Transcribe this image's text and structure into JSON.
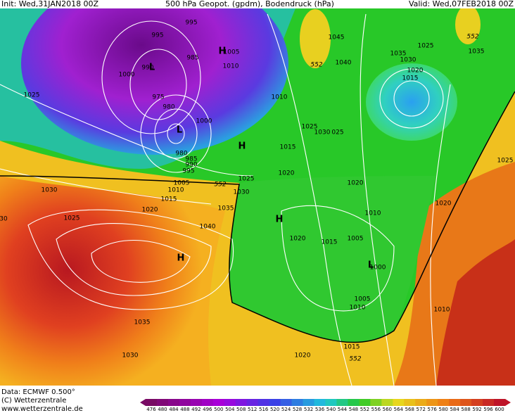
{
  "header": {
    "init": "Init: Wed,31JAN2018 00Z",
    "title": "500 hPa Geopot. (gpdm), Bodendruck (hPa)",
    "valid": "Valid: Wed,07FEB2018 00Z"
  },
  "isobar_labels": [
    "995",
    "995",
    "985",
    "1005",
    "1010",
    "1000",
    "990",
    "975",
    "980",
    "1000",
    "980",
    "985",
    "990",
    "995",
    "1005",
    "1010",
    "1015",
    "1020",
    "1025",
    "1030",
    "1025",
    "1035",
    "1040",
    "1025",
    "1030",
    "1020",
    "1010",
    "1015",
    "1025",
    "1030",
    "025",
    "1045",
    "1040",
    "1035",
    "1030",
    "1025",
    "1020",
    "1015",
    "1035",
    "1020",
    "1010",
    "1020",
    "1015",
    "1005",
    "1000",
    "1005",
    "1010",
    "1015",
    "1020",
    "1010",
    "1020",
    "1025",
    "1035",
    "1030",
    "30"
  ],
  "contour_labels": [
    "552",
    "552",
    "552",
    "552"
  ],
  "pressure_centers": [
    "H",
    "H",
    "H",
    "H",
    "L",
    "L",
    "L"
  ],
  "footer": {
    "data": "Data: ECMWF   0.500°",
    "copyright": "(C) Wetterzentrale",
    "url": "www.wetterzentrale.de"
  },
  "colorbar": {
    "labels": [
      476,
      480,
      484,
      488,
      492,
      496,
      500,
      504,
      508,
      512,
      516,
      520,
      524,
      528,
      532,
      536,
      540,
      544,
      548,
      552,
      556,
      560,
      564,
      568,
      572,
      576,
      580,
      584,
      588,
      592,
      596,
      600
    ]
  }
}
